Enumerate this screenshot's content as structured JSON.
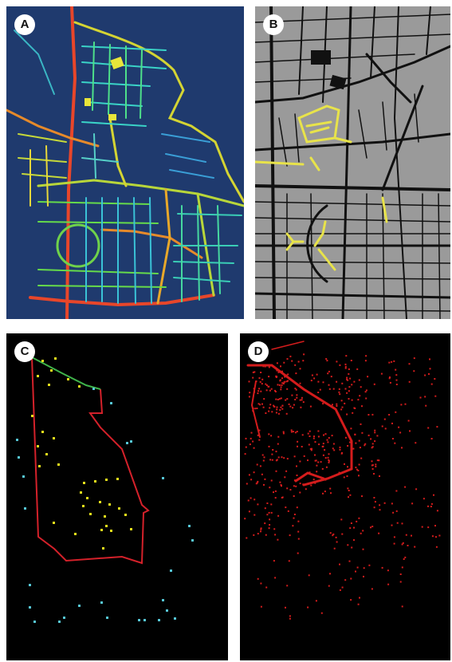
{
  "figure": {
    "panels": [
      {
        "id": "a",
        "label": "A",
        "content": "street-network-heatmap"
      },
      {
        "id": "b",
        "label": "B",
        "content": "street-map-highlighted"
      },
      {
        "id": "c",
        "label": "C",
        "content": "boundary-with-points"
      },
      {
        "id": "d",
        "label": "D",
        "content": "red-point-density"
      }
    ]
  },
  "colors": {
    "panel_a_bg": "#1f3a6e",
    "panel_b_bg": "#9a9a9a",
    "panel_cd_bg": "#000000",
    "highlight_yellow": "#e6e34a",
    "boundary_red": "#d4212a",
    "boundary_green": "#3fb34a",
    "point_yellow": "#e8e21c",
    "point_cyan": "#56c7d6",
    "point_red": "#d41c1c"
  }
}
